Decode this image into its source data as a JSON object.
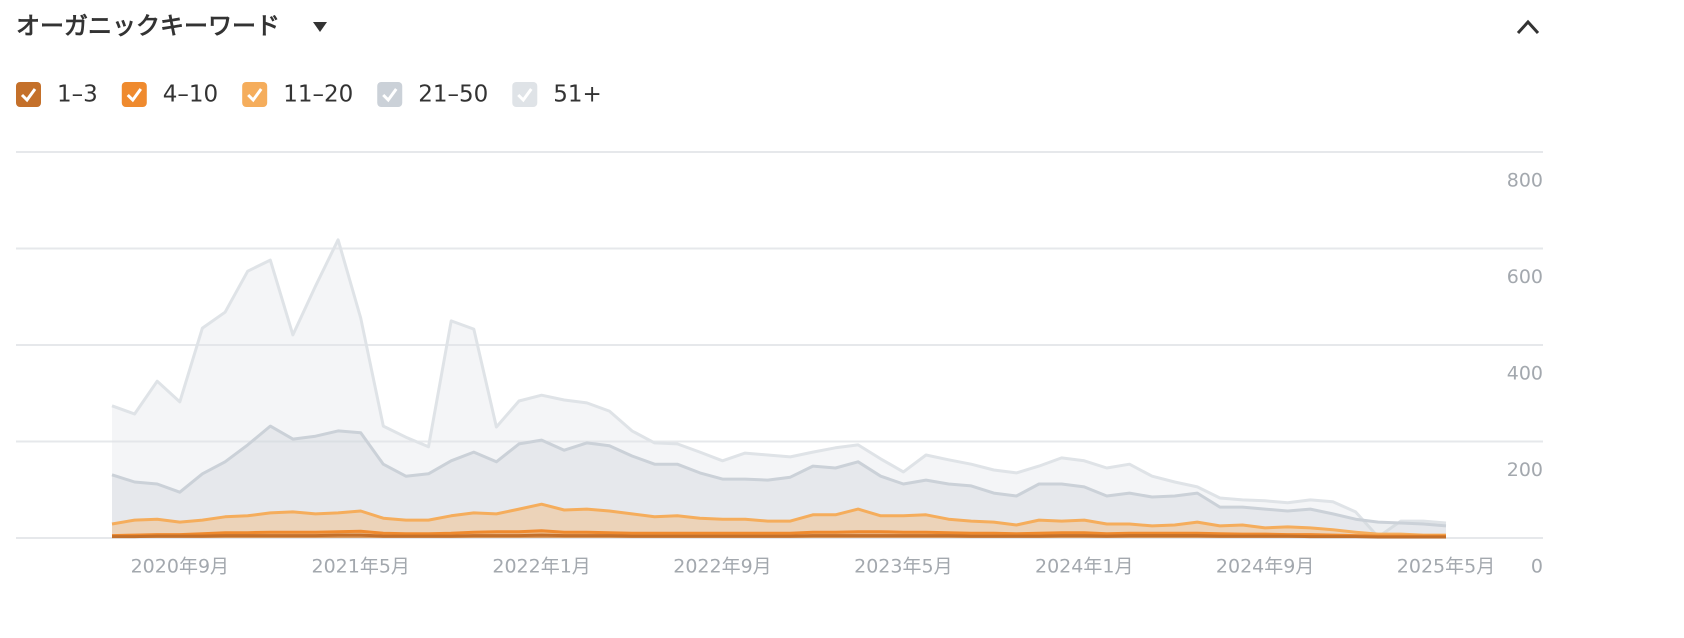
{
  "chart_data": {
    "type": "line",
    "title": "オーガニックキーワード",
    "categories": [
      null,
      null,
      null,
      "2020年9月",
      null,
      null,
      null,
      null,
      null,
      null,
      null,
      "2021年5月",
      null,
      null,
      null,
      null,
      null,
      null,
      null,
      "2022年1月",
      null,
      null,
      null,
      null,
      null,
      null,
      null,
      "2022年9月",
      null,
      null,
      null,
      null,
      null,
      null,
      null,
      "2023年5月",
      null,
      null,
      null,
      null,
      null,
      null,
      null,
      "2024年1月",
      null,
      null,
      null,
      null,
      null,
      null,
      null,
      "2024年9月",
      null,
      null,
      null,
      null,
      null,
      null,
      null,
      "2025年5月"
    ],
    "series": [
      {
        "name": "51+",
        "color": "#dfe3e7",
        "values": [
          274,
          257,
          325,
          282,
          435,
          468,
          553,
          576,
          421,
          522,
          618,
          456,
          232,
          209,
          189,
          450,
          433,
          230,
          284,
          296,
          286,
          280,
          263,
          222,
          197,
          195,
          178,
          160,
          176,
          172,
          168,
          178,
          187,
          193,
          164,
          137,
          172,
          162,
          153,
          141,
          135,
          149,
          166,
          160,
          145,
          153,
          128,
          116,
          106,
          83,
          79,
          77,
          73,
          79,
          75,
          54,
          2,
          35,
          35,
          31
        ]
      },
      {
        "name": "21–50",
        "color": "#cbd1d8",
        "values": [
          131,
          116,
          112,
          95,
          133,
          158,
          193,
          232,
          205,
          211,
          222,
          218,
          153,
          128,
          133,
          160,
          178,
          158,
          195,
          203,
          182,
          197,
          191,
          170,
          153,
          153,
          135,
          122,
          122,
          120,
          126,
          149,
          145,
          158,
          128,
          112,
          120,
          112,
          108,
          93,
          87,
          112,
          112,
          106,
          87,
          93,
          85,
          87,
          93,
          64,
          64,
          60,
          56,
          60,
          50,
          39,
          33,
          31,
          29,
          25
        ]
      },
      {
        "name": "11–20",
        "color": "#f5ad5c",
        "values": [
          29,
          37,
          39,
          33,
          37,
          44,
          46,
          52,
          54,
          50,
          52,
          56,
          41,
          37,
          37,
          46,
          52,
          50,
          60,
          70,
          58,
          60,
          56,
          50,
          44,
          46,
          41,
          39,
          39,
          35,
          35,
          48,
          48,
          60,
          46,
          46,
          48,
          39,
          35,
          33,
          27,
          37,
          35,
          37,
          29,
          29,
          25,
          27,
          33,
          25,
          27,
          21,
          23,
          21,
          17,
          12,
          8,
          8,
          6,
          6
        ]
      },
      {
        "name": "4–10",
        "color": "#ef8a2e",
        "values": [
          5,
          6,
          7,
          7,
          9,
          11,
          11,
          12,
          12,
          12,
          13,
          14,
          10,
          9,
          9,
          10,
          12,
          13,
          13,
          15,
          12,
          12,
          11,
          10,
          10,
          10,
          10,
          10,
          10,
          10,
          10,
          12,
          12,
          13,
          13,
          12,
          12,
          11,
          10,
          10,
          9,
          10,
          11,
          11,
          9,
          10,
          10,
          10,
          10,
          9,
          8,
          8,
          7,
          7,
          6,
          5,
          4,
          4,
          4,
          4
        ]
      },
      {
        "name": "1–3",
        "color": "#c4702a",
        "values": [
          3,
          3,
          4,
          4,
          4,
          5,
          5,
          5,
          5,
          5,
          6,
          6,
          4,
          4,
          4,
          4,
          5,
          5,
          5,
          6,
          5,
          5,
          5,
          4,
          4,
          4,
          4,
          4,
          4,
          4,
          4,
          5,
          5,
          5,
          5,
          5,
          5,
          5,
          4,
          4,
          4,
          4,
          5,
          5,
          4,
          5,
          5,
          5,
          5,
          4,
          4,
          4,
          4,
          3,
          3,
          3,
          2,
          2,
          2,
          2
        ]
      }
    ],
    "legend_order": [
      4,
      3,
      2,
      1,
      0
    ],
    "ylim": [
      0,
      800
    ],
    "yticks": [
      0,
      200,
      400,
      600,
      800
    ],
    "grid": true
  }
}
